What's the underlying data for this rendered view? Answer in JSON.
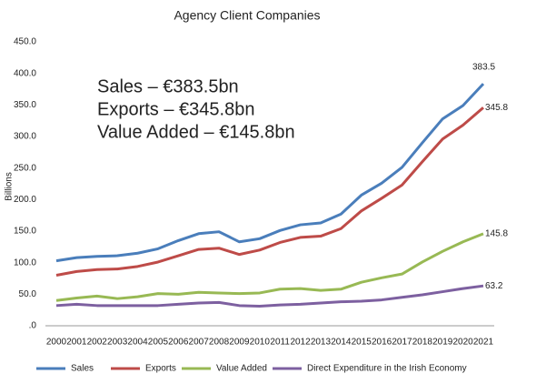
{
  "chart_data": {
    "type": "line",
    "title": "Agency Client Companies",
    "y_label": "Billions",
    "annotations": [
      "Sales – €383.5bn",
      "Exports – €345.8bn",
      "Value Added – €145.8bn"
    ],
    "categories": [
      "2000",
      "2001",
      "2002",
      "2003",
      "2004",
      "2005",
      "2006",
      "2007",
      "2008",
      "2009",
      "2010",
      "2011",
      "2012",
      "2013",
      "2014",
      "2015",
      "2016",
      "2017",
      "2018",
      "2019",
      "2020",
      "2021"
    ],
    "series": [
      {
        "name": "Sales",
        "color": "#4a7ebb",
        "values": [
          103,
          108,
          110,
          111,
          115,
          122,
          135,
          146,
          149,
          133,
          138,
          151,
          160,
          163,
          177,
          207,
          226,
          251,
          290,
          328,
          349,
          383.5
        ]
      },
      {
        "name": "Exports",
        "color": "#be4b48",
        "values": [
          80,
          86,
          89,
          90,
          94,
          101,
          111,
          121,
          123,
          113,
          120,
          132,
          140,
          142,
          154,
          182,
          202,
          223,
          260,
          296,
          318,
          345.8
        ]
      },
      {
        "name": "Value Added",
        "color": "#98b954",
        "values": [
          40,
          44,
          47,
          43,
          46,
          51,
          50,
          53,
          52,
          51,
          52,
          58,
          59,
          56,
          58,
          69,
          76,
          82,
          101,
          118,
          133,
          145.8
        ]
      },
      {
        "name": "Direct Expenditure in the Irish Economy",
        "color": "#7d60a0",
        "values": [
          32,
          34,
          32,
          32,
          32,
          32,
          34,
          36,
          37,
          32,
          31,
          33,
          34,
          36,
          38,
          39,
          41,
          45,
          49,
          54,
          59,
          63.2
        ]
      }
    ],
    "ylim": [
      0,
      450
    ],
    "yticks": [
      {
        "value": 0,
        "label": ".0"
      },
      {
        "value": 50,
        "label": "50.0"
      },
      {
        "value": 100,
        "label": "100.0"
      },
      {
        "value": 150,
        "label": "150.0"
      },
      {
        "value": 200,
        "label": "200.0"
      },
      {
        "value": 250,
        "label": "250.0"
      },
      {
        "value": 300,
        "label": "300.0"
      },
      {
        "value": 350,
        "label": "350.0"
      },
      {
        "value": 400,
        "label": "400.0"
      },
      {
        "value": 450,
        "label": "450.0"
      }
    ],
    "grid": false,
    "legend": "bottom"
  }
}
